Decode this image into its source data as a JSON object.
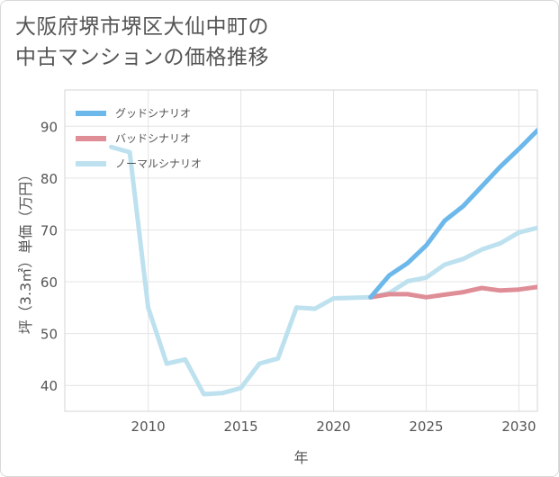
{
  "title_line1": "大阪府堺市堺区大仙中町の",
  "title_line2": "中古マンションの価格推移",
  "chart_data": {
    "type": "line",
    "title": "大阪府堺市堺区大仙中町の中古マンションの価格推移",
    "xlabel": "年",
    "ylabel": "坪（3.3㎡）単価（万円）",
    "xlim": [
      2005.5,
      2031
    ],
    "ylim": [
      35,
      97
    ],
    "xticks": [
      2010,
      2015,
      2020,
      2025,
      2030
    ],
    "yticks": [
      40,
      50,
      60,
      70,
      80,
      90
    ],
    "grid": true,
    "legend_position": "top-left",
    "series": [
      {
        "name": "グッドシナリオ",
        "color": "#6cb8ea",
        "x": [
          2022,
          2023,
          2024,
          2025,
          2026,
          2027,
          2028,
          2029,
          2030,
          2031
        ],
        "values": [
          57.0,
          61.2,
          63.6,
          67.0,
          71.8,
          74.6,
          78.4,
          82.2,
          85.6,
          89.2
        ]
      },
      {
        "name": "バッドシナリオ",
        "color": "#df8e97",
        "x": [
          2022,
          2023,
          2024,
          2025,
          2026,
          2027,
          2028,
          2029,
          2030,
          2031
        ],
        "values": [
          57.0,
          57.6,
          57.6,
          57.0,
          57.5,
          58.0,
          58.8,
          58.3,
          58.5,
          59.0
        ]
      },
      {
        "name": "ノーマルシナリオ",
        "color": "#bde1ee",
        "x": [
          2008,
          2009,
          2010,
          2011,
          2012,
          2013,
          2014,
          2015,
          2016,
          2017,
          2018,
          2019,
          2020,
          2021,
          2022,
          2023,
          2024,
          2025,
          2026,
          2027,
          2028,
          2029,
          2030,
          2031
        ],
        "values": [
          86.0,
          85.0,
          55.0,
          44.2,
          45.0,
          38.3,
          38.5,
          39.5,
          44.2,
          45.2,
          55.0,
          54.8,
          56.8,
          56.9,
          57.0,
          57.8,
          60.1,
          60.8,
          63.3,
          64.4,
          66.2,
          67.4,
          69.5,
          70.4
        ]
      }
    ]
  }
}
